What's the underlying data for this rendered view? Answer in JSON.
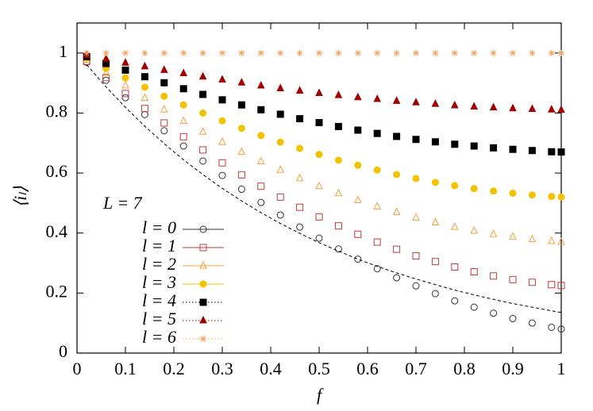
{
  "chart_data": {
    "type": "scatter",
    "xlabel": "f",
    "ylabel": "⟨iₗ⟩",
    "legend_title": "L = 7",
    "legend": "left-bottom",
    "xlim": [
      0,
      1
    ],
    "ylim": [
      0,
      1.1
    ],
    "xticks": [
      0,
      0.1,
      0.2,
      0.3,
      0.4,
      0.5,
      0.6,
      0.7,
      0.8,
      0.9,
      1
    ],
    "yticks": [
      0,
      0.2,
      0.4,
      0.6,
      0.8,
      1
    ],
    "x": [
      0.02,
      0.06,
      0.1,
      0.14,
      0.18,
      0.22,
      0.26,
      0.3,
      0.34,
      0.38,
      0.42,
      0.46,
      0.5,
      0.54,
      0.58,
      0.62,
      0.66,
      0.7,
      0.74,
      0.78,
      0.82,
      0.86,
      0.9,
      0.94,
      0.98,
      1
    ],
    "series": [
      {
        "name": "l = 0",
        "color": "#333333",
        "marker": "circle-open",
        "dash": "solid",
        "values": [
          0.969,
          0.909,
          0.851,
          0.795,
          0.741,
          0.69,
          0.64,
          0.592,
          0.546,
          0.502,
          0.46,
          0.42,
          0.383,
          0.347,
          0.313,
          0.281,
          0.251,
          0.224,
          0.198,
          0.174,
          0.153,
          0.133,
          0.115,
          0.1,
          0.086,
          0.08
        ]
      },
      {
        "name": "l = 1",
        "color": "#c03a3a",
        "marker": "square-open",
        "dash": "solid",
        "values": [
          0.972,
          0.918,
          0.865,
          0.815,
          0.767,
          0.721,
          0.677,
          0.634,
          0.594,
          0.556,
          0.52,
          0.486,
          0.454,
          0.424,
          0.396,
          0.37,
          0.346,
          0.324,
          0.305,
          0.287,
          0.271,
          0.257,
          0.245,
          0.236,
          0.228,
          0.225
        ]
      },
      {
        "name": "l = 2",
        "color": "#f5a040",
        "marker": "triangle-open",
        "dash": "solid",
        "values": [
          0.977,
          0.933,
          0.891,
          0.85,
          0.811,
          0.773,
          0.737,
          0.703,
          0.67,
          0.639,
          0.61,
          0.582,
          0.556,
          0.532,
          0.509,
          0.488,
          0.469,
          0.451,
          0.435,
          0.42,
          0.407,
          0.396,
          0.387,
          0.379,
          0.373,
          0.37
        ]
      },
      {
        "name": "l = 3",
        "color": "#f2c200",
        "marker": "circle-filled",
        "dash": "solid",
        "values": [
          0.983,
          0.949,
          0.917,
          0.886,
          0.856,
          0.827,
          0.8,
          0.774,
          0.749,
          0.725,
          0.703,
          0.682,
          0.662,
          0.643,
          0.626,
          0.61,
          0.595,
          0.582,
          0.569,
          0.558,
          0.548,
          0.54,
          0.533,
          0.527,
          0.522,
          0.52
        ]
      },
      {
        "name": "l = 4",
        "color": "#000000",
        "marker": "square-filled",
        "dash": "dotted",
        "values": [
          0.988,
          0.965,
          0.943,
          0.921,
          0.901,
          0.881,
          0.862,
          0.844,
          0.827,
          0.811,
          0.796,
          0.781,
          0.768,
          0.755,
          0.743,
          0.732,
          0.722,
          0.712,
          0.704,
          0.696,
          0.69,
          0.684,
          0.679,
          0.675,
          0.671,
          0.67
        ]
      },
      {
        "name": "l = 5",
        "color": "#a00000",
        "marker": "triangle-filled",
        "dash": "dotted",
        "values": [
          0.993,
          0.98,
          0.967,
          0.955,
          0.943,
          0.932,
          0.921,
          0.911,
          0.901,
          0.891,
          0.882,
          0.874,
          0.866,
          0.859,
          0.852,
          0.846,
          0.84,
          0.835,
          0.83,
          0.825,
          0.821,
          0.818,
          0.815,
          0.813,
          0.811,
          0.81
        ]
      },
      {
        "name": "l = 6",
        "color": "#f5a050",
        "marker": "star",
        "dash": "dotted",
        "values": [
          1,
          1,
          1,
          1,
          1,
          1,
          1,
          1,
          1,
          1,
          1,
          1,
          1,
          1,
          1,
          1,
          1,
          1,
          1,
          1,
          1,
          1,
          1,
          1,
          1,
          1
        ]
      },
      {
        "color": "#000000",
        "marker": "none",
        "dash": "dashed",
        "values": [
          0.961,
          0.887,
          0.819,
          0.756,
          0.698,
          0.644,
          0.595,
          0.549,
          0.507,
          0.468,
          0.432,
          0.399,
          0.368,
          0.34,
          0.313,
          0.289,
          0.267,
          0.247,
          0.228,
          0.21,
          0.194,
          0.179,
          0.165,
          0.153,
          0.141,
          0.135
        ]
      }
    ]
  }
}
